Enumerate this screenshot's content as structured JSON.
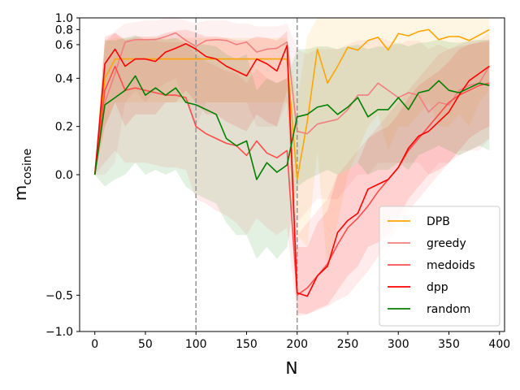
{
  "chart_data": {
    "type": "line",
    "xlabel": "N",
    "ylabel_main": "m",
    "ylabel_sub": "cosine",
    "xlim": [
      -15,
      405
    ],
    "ylim": [
      -1.0,
      1.0
    ],
    "y_scale": "symlog",
    "y_linthresh": 0.5,
    "xticks": [
      0,
      50,
      100,
      150,
      200,
      250,
      300,
      350,
      400
    ],
    "xtick_labels": [
      "0",
      "50",
      "100",
      "150",
      "200",
      "250",
      "300",
      "350",
      "400"
    ],
    "yticks": [
      -1.0,
      -0.5,
      0.0,
      0.2,
      0.4,
      0.6,
      0.8,
      1.0
    ],
    "ytick_labels": [
      "−1.0",
      "−0.5",
      "0.0",
      "0.2",
      "0.4",
      "0.6",
      "0.8",
      "1.0"
    ],
    "vlines": [
      100,
      200
    ],
    "legend_position": "lower-right",
    "grid": false,
    "x": [
      0,
      10,
      20,
      30,
      40,
      50,
      60,
      70,
      80,
      90,
      100,
      110,
      120,
      130,
      140,
      150,
      160,
      170,
      180,
      190,
      200,
      210,
      220,
      230,
      240,
      250,
      260,
      270,
      280,
      290,
      300,
      310,
      320,
      330,
      340,
      350,
      360,
      370,
      380,
      390
    ],
    "series": [
      {
        "name": "DPB",
        "color": "#ffa500",
        "values": [
          0.0,
          0.4,
          0.48,
          0.48,
          0.48,
          0.48,
          0.48,
          0.48,
          0.48,
          0.48,
          0.48,
          0.48,
          0.48,
          0.48,
          0.48,
          0.48,
          0.48,
          0.48,
          0.48,
          0.48,
          -0.02,
          0.22,
          0.55,
          0.38,
          0.45,
          0.57,
          0.54,
          0.65,
          0.69,
          0.54,
          0.74,
          0.71,
          0.77,
          0.8,
          0.66,
          0.7,
          0.7,
          0.65,
          0.72,
          0.8
        ],
        "lower": [
          0.0,
          0.2,
          0.3,
          0.3,
          0.3,
          0.3,
          0.3,
          0.3,
          0.3,
          0.3,
          0.3,
          0.3,
          0.3,
          0.3,
          0.3,
          0.3,
          0.3,
          0.3,
          0.3,
          0.3,
          -0.25,
          -0.3,
          0.1,
          -0.4,
          -0.2,
          0.0,
          0.1,
          0.2,
          0.25,
          0.1,
          0.2,
          0.2,
          0.25,
          0.3,
          0.2,
          0.2,
          0.25,
          0.2,
          0.3,
          0.35
        ],
        "upper": [
          0.0,
          0.65,
          0.68,
          0.68,
          0.68,
          0.68,
          0.68,
          0.68,
          0.68,
          0.68,
          0.68,
          0.68,
          0.68,
          0.68,
          0.68,
          0.68,
          0.68,
          0.68,
          0.68,
          0.68,
          0.3,
          0.7,
          1.0,
          1.0,
          1.0,
          1.0,
          1.0,
          1.0,
          1.0,
          1.0,
          1.0,
          1.0,
          1.0,
          1.0,
          1.0,
          1.0,
          1.0,
          1.0,
          1.0,
          1.0
        ]
      },
      {
        "name": "greedy",
        "color": "#f08080",
        "values": [
          0.0,
          0.3,
          0.42,
          0.63,
          0.66,
          0.66,
          0.66,
          0.7,
          0.75,
          0.65,
          0.58,
          0.65,
          0.66,
          0.65,
          0.6,
          0.63,
          0.52,
          0.55,
          0.56,
          0.63,
          0.18,
          0.17,
          0.21,
          0.22,
          0.23,
          0.27,
          0.33,
          0.33,
          0.38,
          0.35,
          0.32,
          0.34,
          0.33,
          0.26,
          0.3,
          0.29,
          0.35,
          0.37,
          0.38,
          0.45
        ],
        "lower": [
          0.0,
          0.0,
          0.05,
          0.3,
          0.35,
          0.3,
          0.35,
          0.38,
          0.4,
          0.3,
          0.2,
          0.3,
          0.3,
          0.3,
          0.3,
          0.3,
          0.2,
          0.2,
          0.2,
          0.3,
          -0.2,
          -0.15,
          -0.1,
          -0.1,
          -0.1,
          -0.05,
          0.0,
          0.0,
          0.05,
          0.05,
          0.05,
          0.05,
          0.05,
          0.0,
          0.05,
          0.05,
          0.1,
          0.1,
          0.1,
          0.15
        ],
        "upper": [
          0.0,
          0.6,
          0.78,
          0.9,
          0.92,
          0.95,
          0.95,
          1.0,
          1.0,
          0.95,
          0.9,
          0.95,
          0.95,
          0.95,
          0.9,
          0.9,
          0.85,
          0.85,
          0.85,
          0.9,
          0.55,
          0.5,
          0.55,
          0.55,
          0.55,
          0.6,
          0.65,
          0.65,
          0.7,
          0.65,
          0.6,
          0.65,
          0.65,
          0.55,
          0.6,
          0.55,
          0.6,
          0.65,
          0.65,
          0.75
        ]
      },
      {
        "name": "medoids",
        "color": "#ff4c4c",
        "values": [
          0.0,
          0.35,
          0.45,
          0.35,
          0.36,
          0.35,
          0.34,
          0.33,
          0.33,
          0.32,
          0.2,
          0.17,
          0.15,
          0.13,
          0.12,
          0.08,
          0.14,
          0.09,
          0.07,
          0.1,
          -0.5,
          -0.47,
          -0.42,
          -0.37,
          -0.29,
          -0.22,
          -0.18,
          -0.13,
          -0.07,
          -0.02,
          0.03,
          0.1,
          0.15,
          0.2,
          0.25,
          0.3,
          0.33,
          0.35,
          0.37,
          0.38
        ],
        "lower": [
          0.0,
          0.05,
          0.1,
          0.05,
          0.05,
          0.05,
          0.04,
          0.03,
          0.03,
          0.02,
          -0.1,
          -0.12,
          -0.15,
          -0.17,
          -0.2,
          -0.25,
          -0.18,
          -0.22,
          -0.25,
          -0.22,
          -0.75,
          -0.72,
          -0.67,
          -0.62,
          -0.55,
          -0.5,
          -0.45,
          -0.4,
          -0.34,
          -0.28,
          -0.22,
          -0.15,
          -0.1,
          -0.05,
          0.0,
          0.05,
          0.08,
          0.1,
          0.12,
          0.15
        ],
        "upper": [
          0.0,
          0.65,
          0.75,
          0.66,
          0.66,
          0.65,
          0.64,
          0.63,
          0.63,
          0.62,
          0.5,
          0.47,
          0.45,
          0.43,
          0.42,
          0.38,
          0.44,
          0.4,
          0.38,
          0.4,
          -0.25,
          -0.2,
          -0.15,
          -0.1,
          0.0,
          0.05,
          0.1,
          0.15,
          0.2,
          0.25,
          0.3,
          0.35,
          0.4,
          0.45,
          0.5,
          0.55,
          0.58,
          0.6,
          0.62,
          0.63
        ]
      },
      {
        "name": "dpp",
        "color": "#ff0000",
        "values": [
          0.0,
          0.46,
          0.55,
          0.45,
          0.48,
          0.48,
          0.47,
          0.52,
          0.56,
          0.61,
          0.55,
          0.49,
          0.48,
          0.45,
          0.43,
          0.41,
          0.48,
          0.46,
          0.43,
          0.59,
          -0.49,
          -0.51,
          -0.42,
          -0.38,
          -0.24,
          -0.19,
          -0.16,
          -0.06,
          -0.04,
          -0.02,
          0.03,
          0.11,
          0.16,
          0.18,
          0.22,
          0.26,
          0.33,
          0.39,
          0.42,
          0.45
        ],
        "lower": [
          0.0,
          0.2,
          0.3,
          0.2,
          0.25,
          0.25,
          0.25,
          0.3,
          0.3,
          0.35,
          0.3,
          0.25,
          0.25,
          0.22,
          0.2,
          0.18,
          0.25,
          0.22,
          0.2,
          0.35,
          -0.7,
          -0.72,
          -0.65,
          -0.6,
          -0.48,
          -0.42,
          -0.38,
          -0.3,
          -0.28,
          -0.25,
          -0.18,
          -0.1,
          -0.05,
          0.0,
          0.02,
          0.05,
          0.1,
          0.15,
          0.18,
          0.2
        ],
        "upper": [
          0.0,
          0.7,
          0.75,
          0.65,
          0.7,
          0.7,
          0.7,
          0.75,
          0.78,
          0.8,
          0.75,
          0.7,
          0.7,
          0.68,
          0.65,
          0.65,
          0.7,
          0.68,
          0.65,
          0.78,
          -0.3,
          -0.3,
          -0.2,
          -0.15,
          0.0,
          0.02,
          0.05,
          0.15,
          0.18,
          0.2,
          0.25,
          0.32,
          0.37,
          0.4,
          0.43,
          0.47,
          0.55,
          0.6,
          0.63,
          0.66
        ]
      },
      {
        "name": "random",
        "color": "#008000",
        "values": [
          0.0,
          0.29,
          0.32,
          0.35,
          0.41,
          0.33,
          0.36,
          0.33,
          0.36,
          0.3,
          0.29,
          0.27,
          0.25,
          0.15,
          0.12,
          0.14,
          -0.02,
          0.05,
          0.01,
          0.04,
          0.24,
          0.25,
          0.28,
          0.29,
          0.25,
          0.28,
          0.32,
          0.24,
          0.27,
          0.27,
          0.32,
          0.27,
          0.34,
          0.35,
          0.39,
          0.35,
          0.34,
          0.36,
          0.38,
          0.37
        ],
        "lower": [
          0.0,
          -0.05,
          -0.02,
          0.0,
          0.05,
          0.0,
          0.02,
          0.0,
          0.02,
          -0.05,
          -0.08,
          -0.1,
          -0.12,
          -0.2,
          -0.25,
          -0.25,
          -0.35,
          -0.3,
          -0.35,
          -0.3,
          -0.05,
          -0.02,
          0.0,
          0.02,
          0.0,
          0.02,
          0.05,
          0.0,
          0.02,
          0.02,
          0.05,
          0.02,
          0.08,
          0.1,
          0.12,
          0.1,
          0.08,
          0.1,
          0.12,
          0.1
        ],
        "upper": [
          0.0,
          0.65,
          0.65,
          0.68,
          0.72,
          0.66,
          0.68,
          0.66,
          0.68,
          0.62,
          0.6,
          0.6,
          0.58,
          0.5,
          0.48,
          0.5,
          0.35,
          0.4,
          0.38,
          0.4,
          0.55,
          0.55,
          0.58,
          0.58,
          0.55,
          0.58,
          0.6,
          0.55,
          0.58,
          0.58,
          0.62,
          0.58,
          0.62,
          0.63,
          0.66,
          0.63,
          0.62,
          0.64,
          0.66,
          0.65
        ]
      }
    ]
  }
}
